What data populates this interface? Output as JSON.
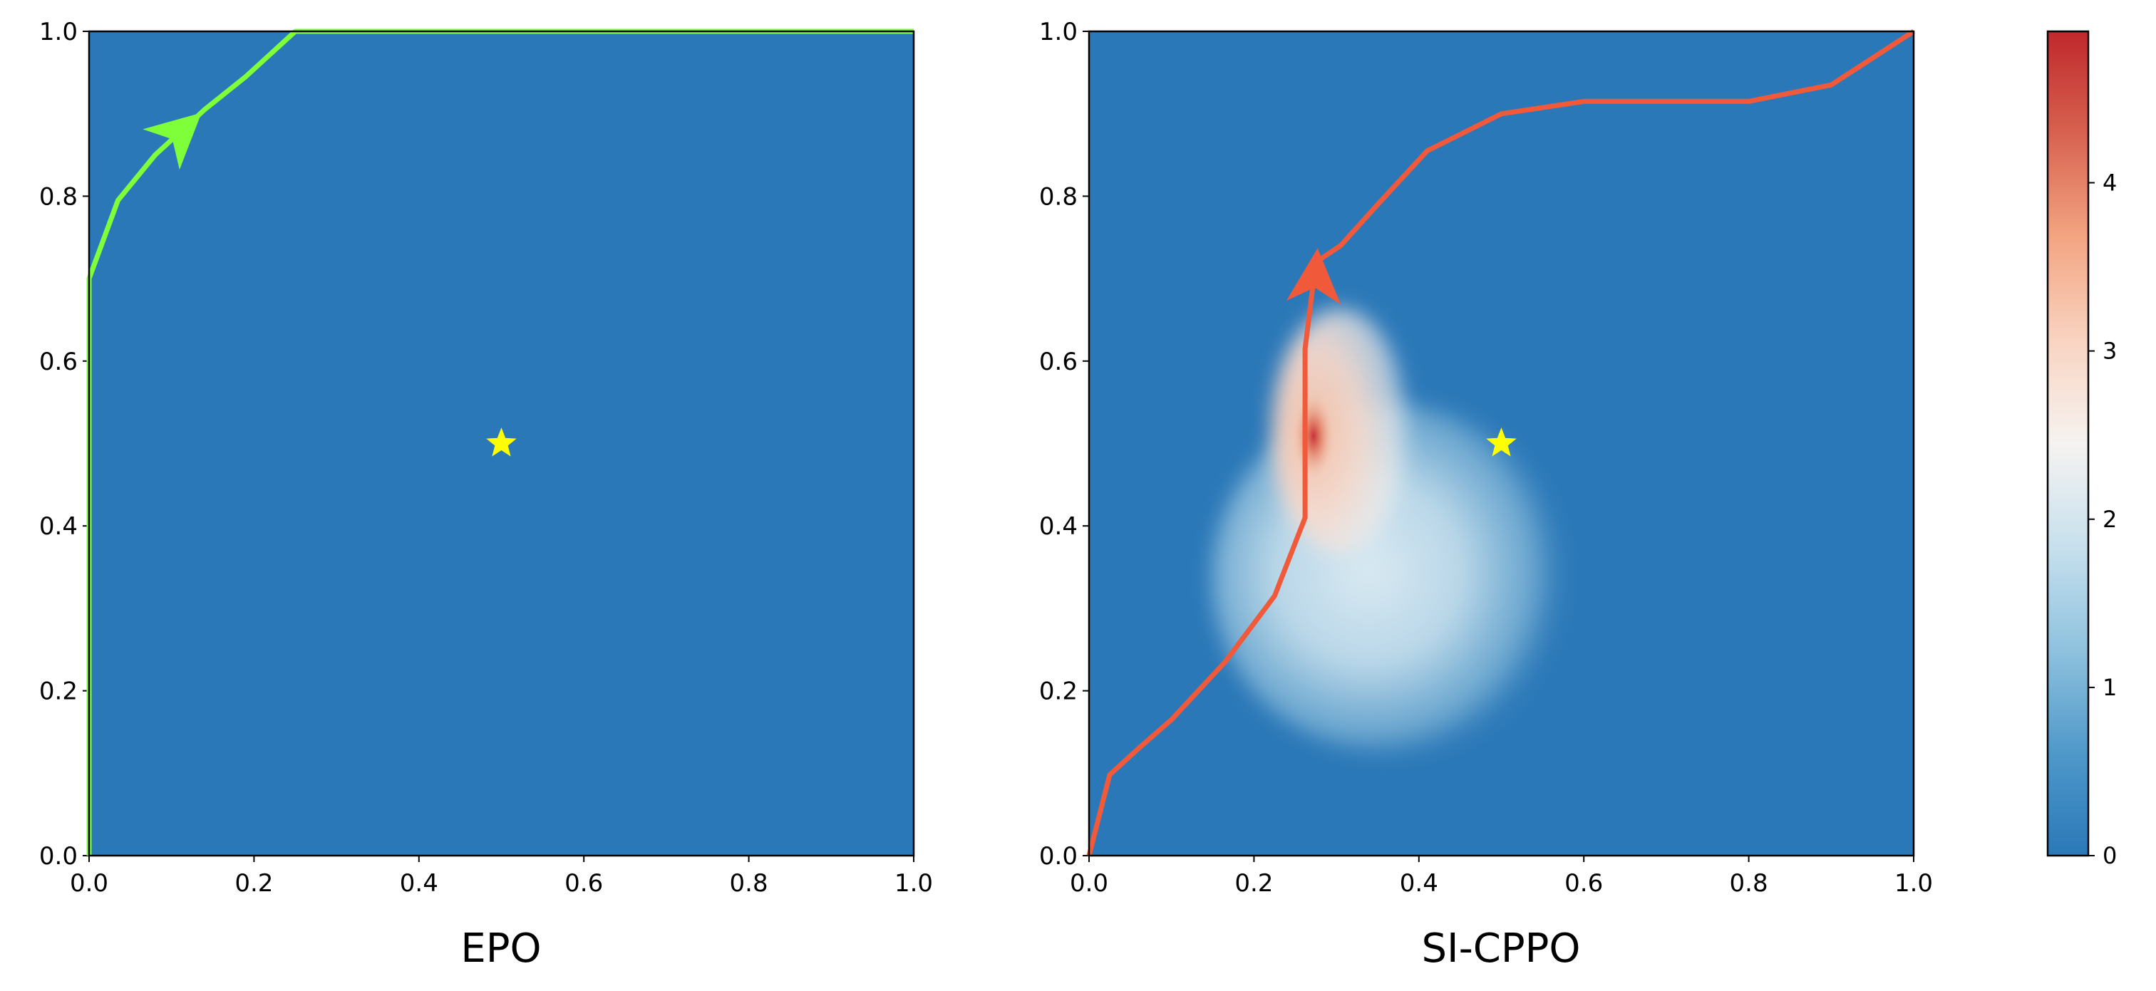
{
  "chart_data": [
    {
      "type": "line",
      "title": "EPO",
      "xlabel": "",
      "ylabel": "",
      "xlim": [
        0,
        1
      ],
      "ylim": [
        0,
        1
      ],
      "xticks": [
        "0.0",
        "0.2",
        "0.4",
        "0.6",
        "0.8",
        "1.0"
      ],
      "yticks": [
        "0.0",
        "0.2",
        "0.4",
        "0.6",
        "0.8",
        "1.0"
      ],
      "background_value": 0,
      "colormap": "RdBu_r",
      "target_marker": {
        "x": 0.5,
        "y": 0.5,
        "symbol": "star",
        "color": "#ffff00"
      },
      "series": [
        {
          "color": "#7fff3a",
          "points": [
            [
              0.0,
              0.0
            ],
            [
              0.0,
              0.7
            ],
            [
              0.035,
              0.795
            ],
            [
              0.08,
              0.85
            ],
            [
              0.14,
              0.905
            ],
            [
              0.19,
              0.945
            ],
            [
              0.25,
              1.0
            ],
            [
              1.0,
              1.0
            ]
          ],
          "arrow": {
            "tail": [
              0.08,
              0.85
            ],
            "head": [
              0.135,
              0.9
            ]
          }
        }
      ]
    },
    {
      "type": "heatmap",
      "title": "SI-CPPO",
      "xlabel": "",
      "ylabel": "",
      "xlim": [
        0,
        1
      ],
      "ylim": [
        0,
        1
      ],
      "xticks": [
        "0.0",
        "0.2",
        "0.4",
        "0.6",
        "0.8",
        "1.0"
      ],
      "yticks": [
        "0.0",
        "0.2",
        "0.4",
        "0.6",
        "0.8",
        "1.0"
      ],
      "colormap": "RdBu_r",
      "heat_region": {
        "peak_value": 4.9,
        "peak_at": [
          0.27,
          0.51
        ],
        "extent_x": [
          0.23,
          0.57
        ],
        "extent_y": [
          0.34,
          0.73
        ]
      },
      "target_marker": {
        "x": 0.5,
        "y": 0.5,
        "symbol": "star",
        "color": "#ffff00"
      },
      "series": [
        {
          "color": "#f05a3a",
          "points": [
            [
              0.0,
              0.0
            ],
            [
              0.025,
              0.098
            ],
            [
              0.06,
              0.13
            ],
            [
              0.1,
              0.165
            ],
            [
              0.165,
              0.235
            ],
            [
              0.225,
              0.315
            ],
            [
              0.262,
              0.41
            ],
            [
              0.262,
              0.615
            ],
            [
              0.275,
              0.72
            ],
            [
              0.305,
              0.74
            ],
            [
              0.35,
              0.79
            ],
            [
              0.41,
              0.855
            ],
            [
              0.5,
              0.9
            ],
            [
              0.6,
              0.915
            ],
            [
              0.8,
              0.915
            ],
            [
              0.9,
              0.935
            ],
            [
              1.0,
              1.0
            ]
          ],
          "arrow": {
            "tail": [
              0.273,
              0.68
            ],
            "head": [
              0.277,
              0.735
            ]
          }
        }
      ]
    }
  ],
  "colorbar": {
    "ticks": [
      "0",
      "1",
      "2",
      "3",
      "4"
    ],
    "range": [
      0,
      4.9
    ],
    "colormap": "RdBu_r"
  }
}
